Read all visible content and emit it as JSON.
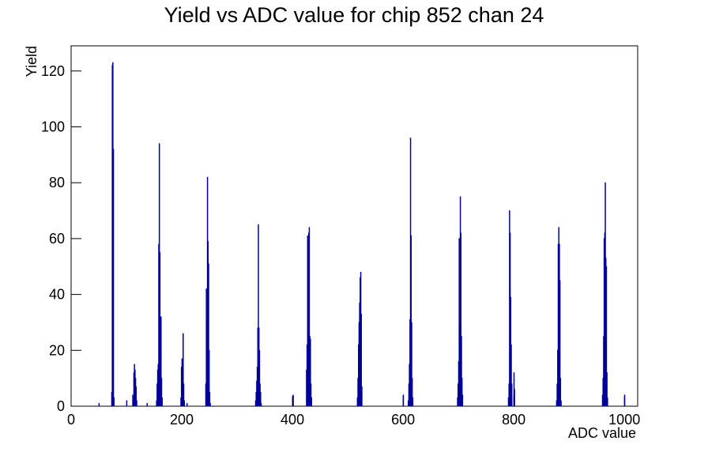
{
  "chart_data": {
    "type": "histogram",
    "title": "Yield vs ADC value for chip 852 chan 24",
    "x_label": "ADC value",
    "y_label": "Yield",
    "color": "#000099",
    "xlim": [
      0,
      1024
    ],
    "ylim": [
      0,
      129
    ],
    "xticks": [
      0,
      200,
      400,
      600,
      800,
      1000
    ],
    "yticks": [
      0,
      20,
      40,
      60,
      80,
      100,
      120
    ],
    "x": [
      50,
      73,
      74,
      75,
      76,
      77,
      100,
      111,
      112,
      113,
      114,
      115,
      116,
      117,
      118,
      137,
      154,
      155,
      156,
      157,
      158,
      159,
      160,
      161,
      162,
      163,
      164,
      198,
      199,
      200,
      201,
      202,
      203,
      204,
      209,
      243,
      244,
      245,
      246,
      247,
      248,
      249,
      250,
      251,
      333,
      334,
      335,
      336,
      337,
      338,
      339,
      340,
      341,
      342,
      343,
      401,
      425,
      426,
      427,
      428,
      429,
      430,
      431,
      432,
      433,
      434,
      517,
      518,
      519,
      520,
      521,
      522,
      523,
      524,
      525,
      600,
      609,
      610,
      611,
      612,
      613,
      614,
      615,
      616,
      617,
      698,
      699,
      700,
      701,
      702,
      703,
      704,
      705,
      706,
      707,
      790,
      791,
      792,
      793,
      794,
      795,
      796,
      800,
      801,
      877,
      878,
      879,
      880,
      881,
      882,
      883,
      884,
      885,
      960,
      961,
      962,
      963,
      964,
      965,
      966,
      967,
      968,
      969,
      1000
    ],
    "values": [
      1,
      5,
      122,
      123,
      92,
      3,
      2,
      4,
      2,
      12,
      15,
      13,
      10,
      7,
      2,
      1,
      2,
      8,
      13,
      15,
      58,
      94,
      55,
      21,
      32,
      10,
      3,
      3,
      14,
      17,
      13,
      26,
      8,
      2,
      1,
      8,
      42,
      30,
      82,
      59,
      51,
      20,
      5,
      1,
      2,
      5,
      9,
      14,
      28,
      65,
      28,
      20,
      8,
      5,
      1,
      4,
      13,
      22,
      61,
      38,
      62,
      64,
      25,
      24,
      8,
      3,
      3,
      10,
      22,
      30,
      37,
      46,
      48,
      33,
      7,
      4,
      2,
      8,
      15,
      31,
      96,
      61,
      30,
      10,
      3,
      3,
      8,
      16,
      60,
      30,
      75,
      62,
      25,
      10,
      4,
      3,
      8,
      70,
      62,
      39,
      22,
      8,
      12,
      6,
      2,
      8,
      20,
      58,
      64,
      58,
      45,
      10,
      2,
      4,
      10,
      25,
      60,
      62,
      80,
      53,
      50,
      12,
      3,
      4
    ]
  }
}
